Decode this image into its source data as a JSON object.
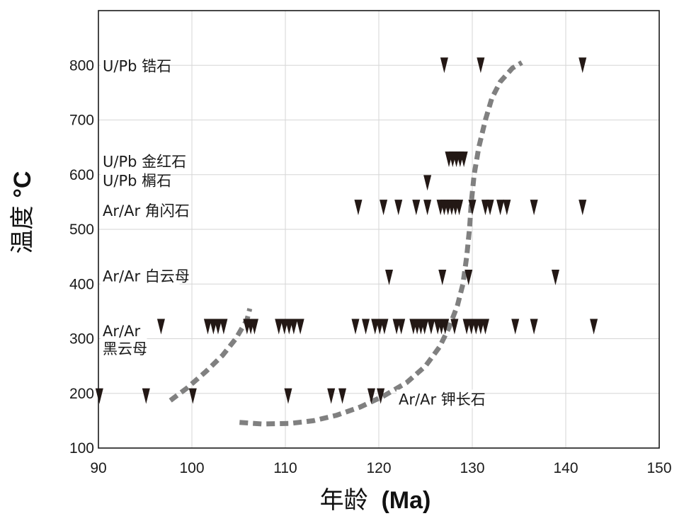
{
  "chart_data": {
    "type": "scatter",
    "xlabel_main": "年龄",
    "xlabel_unit": "(Ma)",
    "ylabel_main": "温度",
    "ylabel_unit": "°C",
    "xlim": [
      90,
      150
    ],
    "ylim": [
      100,
      900
    ],
    "x_ticks": [
      90,
      100,
      110,
      120,
      130,
      140,
      150
    ],
    "y_ticks": [
      100,
      200,
      300,
      400,
      500,
      600,
      700,
      800
    ],
    "grid": true,
    "marker": "down-triangle",
    "marker_color": "#231815",
    "curve_color": "#808080",
    "group_labels": [
      {
        "lines": [
          "U/Pb 锆石"
        ],
        "temp": 800
      },
      {
        "lines": [
          "U/Pb 金红石"
        ],
        "temp": 625
      },
      {
        "lines": [
          "U/Pb 榍石"
        ],
        "temp": 590
      },
      {
        "lines": [
          "Ar/Ar 角闪石"
        ],
        "temp": 535
      },
      {
        "lines": [
          "Ar/Ar 白云母"
        ],
        "temp": 415
      },
      {
        "lines": [
          "Ar/Ar",
          "黑云母"
        ],
        "temp": 315
      },
      {
        "lines": [
          "Ar/Ar 钾长石"
        ],
        "temp": 190
      }
    ],
    "series": [
      {
        "name": "U/Pb 锆石",
        "y": 800,
        "x": [
          127.0,
          130.9,
          141.8
        ]
      },
      {
        "name": "U/Pb 金红石",
        "y": 628,
        "x": [
          127.5,
          127.9,
          128.3,
          128.7,
          129.1
        ]
      },
      {
        "name": "U/Pb 榍石",
        "y": 585,
        "x": [
          125.2
        ]
      },
      {
        "name": "Ar/Ar 角闪石",
        "y": 540,
        "x": [
          117.8,
          120.5,
          122.1,
          124.0,
          125.2,
          126.6,
          127.0,
          127.4,
          127.8,
          128.2,
          128.6,
          130.0,
          131.4,
          131.9,
          133.0,
          133.7,
          136.6,
          141.8
        ]
      },
      {
        "name": "Ar/Ar 白云母",
        "y": 412,
        "x": [
          121.1,
          126.8,
          129.6,
          138.9
        ]
      },
      {
        "name": "Ar/Ar 黑云母",
        "y": 322,
        "x": [
          96.7,
          101.7,
          102.3,
          102.8,
          103.4,
          105.9,
          106.3,
          106.7,
          109.3,
          109.9,
          110.4,
          110.9,
          111.6,
          117.5,
          118.6,
          119.6,
          120.1,
          120.6,
          121.9,
          122.4,
          123.7,
          124.1,
          124.5,
          124.9,
          125.6,
          126.3,
          126.7,
          127.1,
          128.1,
          129.4,
          129.9,
          130.4,
          130.9,
          131.4,
          134.6,
          136.6,
          143.0
        ]
      },
      {
        "name": "Ar/Ar 钾长石",
        "y": 195,
        "x": [
          90.1,
          95.1,
          100.1,
          110.3,
          114.9,
          116.1,
          119.2,
          120.2
        ]
      }
    ],
    "curves": [
      {
        "x": [
          97.7,
          99.5,
          101.5,
          103.3,
          104.7,
          105.9,
          106.2
        ],
        "y": [
          187,
          210,
          240,
          270,
          300,
          335,
          355
        ]
      },
      {
        "x": [
          105.1,
          107.5,
          110.5,
          113.0,
          115.5,
          118.0,
          120.5,
          123.0,
          125.0,
          126.5,
          127.5,
          128.4,
          129.0,
          129.4,
          129.7,
          129.9,
          130.2,
          130.7,
          131.4,
          132.1,
          133.0,
          134.3,
          135.3
        ],
        "y": [
          147,
          144,
          145,
          150,
          160,
          175,
          195,
          220,
          250,
          285,
          320,
          360,
          400,
          450,
          500,
          550,
          600,
          650,
          700,
          740,
          770,
          795,
          805
        ]
      }
    ]
  }
}
